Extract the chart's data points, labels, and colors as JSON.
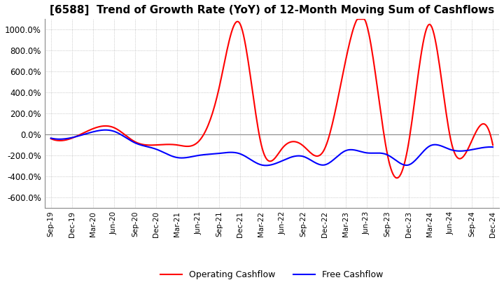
{
  "title": "[6588]  Trend of Growth Rate (YoY) of 12-Month Moving Sum of Cashflows",
  "title_fontsize": 11,
  "ylim": [
    -700,
    1100
  ],
  "yticks": [
    -600,
    -400,
    -200,
    0,
    200,
    400,
    600,
    800,
    1000
  ],
  "ytick_labels": [
    "-600.0%",
    "-400.0%",
    "-200.0%",
    "0.0%",
    "200.0%",
    "400.0%",
    "600.0%",
    "800.0%",
    "1000.0%"
  ],
  "background_color": "#ffffff",
  "grid_color": "#aaaaaa",
  "operating_color": "#ff0000",
  "free_color": "#0000ff",
  "legend_labels": [
    "Operating Cashflow",
    "Free Cashflow"
  ],
  "x_labels": [
    "Sep-19",
    "Dec-19",
    "Mar-20",
    "Jun-20",
    "Sep-20",
    "Dec-20",
    "Mar-21",
    "Jun-21",
    "Sep-21",
    "Dec-21",
    "Mar-22",
    "Jun-22",
    "Sep-22",
    "Dec-22",
    "Mar-23",
    "Jun-23",
    "Sep-23",
    "Dec-23",
    "Mar-24",
    "Jun-24",
    "Sep-24",
    "Dec-24"
  ],
  "operating_cashflow": [
    -40,
    -35,
    55,
    65,
    -70,
    -100,
    -100,
    -70,
    450,
    1050,
    -100,
    -130,
    -110,
    -140,
    700,
    1050,
    -200,
    -80,
    1050,
    -50,
    -60,
    -100
  ],
  "free_cashflow": [
    -35,
    -30,
    25,
    30,
    -80,
    -140,
    -220,
    -200,
    -180,
    -185,
    -290,
    -250,
    -210,
    -290,
    -155,
    -175,
    -195,
    -290,
    -110,
    -145,
    -145,
    -120
  ]
}
